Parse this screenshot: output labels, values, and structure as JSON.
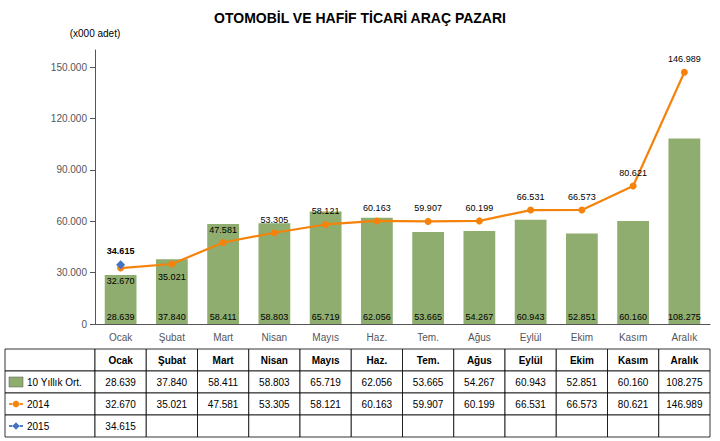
{
  "chart_data": {
    "type": "bar",
    "title": "OTOMOBİL VE HAFİF TİCARİ ARAÇ PAZARI",
    "ylabel": "(x000 adet)",
    "categories": [
      "Ocak",
      "Şubat",
      "Mart",
      "Nisan",
      "Mayıs",
      "Haz.",
      "Tem.",
      "Ağus",
      "Eylül",
      "Ekim",
      "Kasım",
      "Aralık"
    ],
    "series": [
      {
        "name": "10 Yıllık Ort.",
        "type": "bar",
        "color": "#8fad6e",
        "values": [
          28639,
          37840,
          58411,
          58803,
          65719,
          62056,
          53665,
          54267,
          60943,
          52851,
          60160,
          108275
        ],
        "value_labels": [
          "28.639",
          "37.840",
          "58.411",
          "58.803",
          "65.719",
          "62.056",
          "53.665",
          "54.267",
          "60.943",
          "52.851",
          "60.160",
          "108.275"
        ]
      },
      {
        "name": "2014",
        "type": "line",
        "color": "#f5820a",
        "marker": "circle",
        "values": [
          32670,
          35021,
          47581,
          53305,
          58121,
          60163,
          59907,
          60199,
          66531,
          66573,
          80621,
          146989
        ],
        "value_labels": [
          "32.670",
          "35.021",
          "47.581",
          "53.305",
          "58.121",
          "60.163",
          "59.907",
          "60.199",
          "66.531",
          "66.573",
          "80.621",
          "146.989"
        ]
      },
      {
        "name": "2015",
        "type": "line",
        "color": "#4472c4",
        "marker": "diamond",
        "values": [
          34615,
          null,
          null,
          null,
          null,
          null,
          null,
          null,
          null,
          null,
          null,
          null
        ],
        "value_labels": [
          "34.615",
          null,
          null,
          null,
          null,
          null,
          null,
          null,
          null,
          null,
          null,
          null
        ]
      }
    ],
    "ylim": [
      0,
      160000
    ],
    "yticks": [
      0,
      {
        "value": 30000,
        "label": "30.000"
      },
      {
        "value": 60000,
        "label": "60.000"
      },
      {
        "value": 90000,
        "label": "90.000"
      },
      {
        "value": 120000,
        "label": "120.000"
      },
      {
        "value": 150000,
        "label": "150.000"
      }
    ],
    "data_labels": true,
    "grid": false
  }
}
